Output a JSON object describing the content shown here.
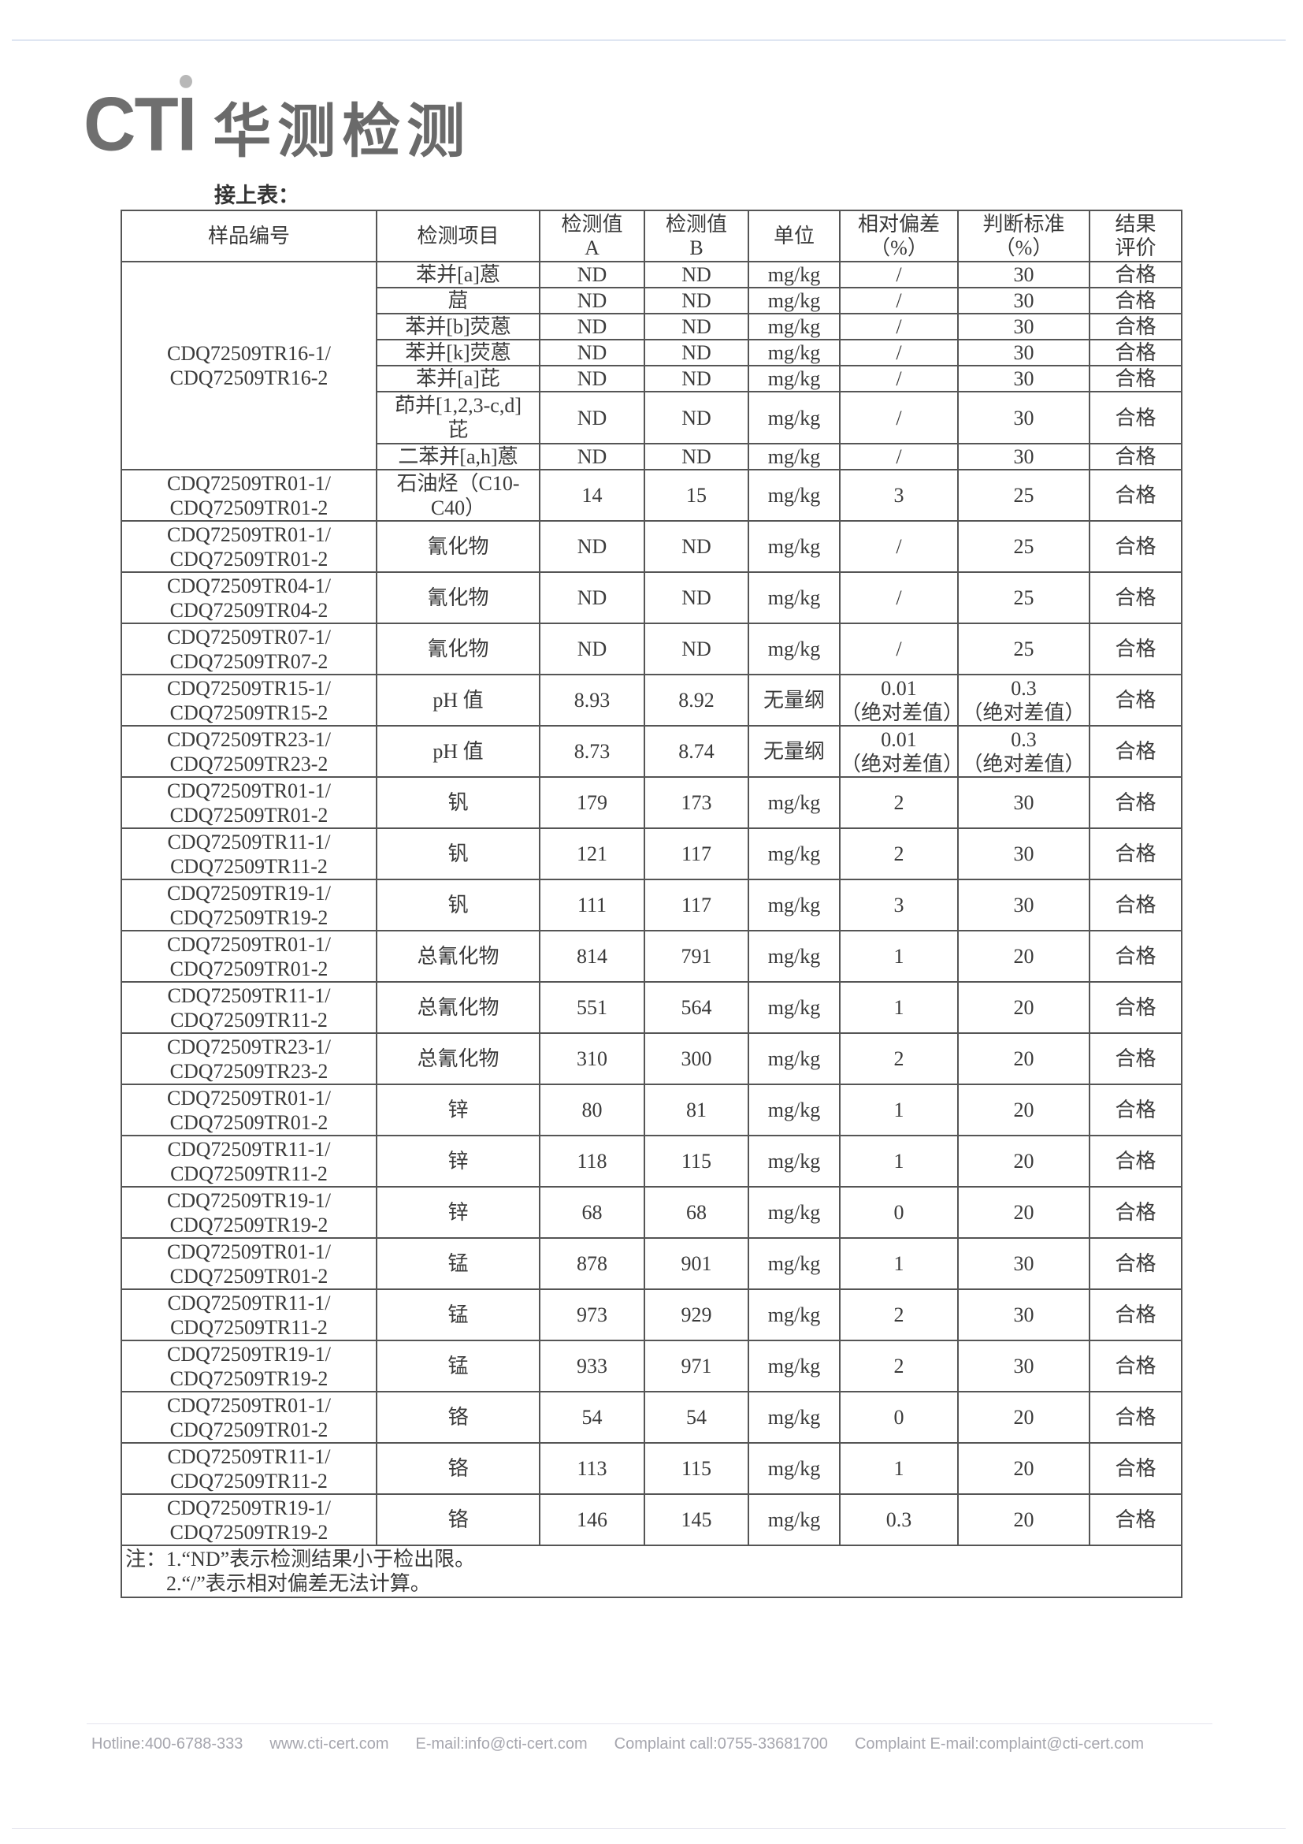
{
  "header": {
    "logo_text": "CTI",
    "logo_cn": "华测检测",
    "subtitle": "接上表："
  },
  "table": {
    "columns": [
      "样品编号",
      "检测项目",
      "检测值\nA",
      "检测值\nB",
      "单位",
      "相对偏差\n（%）",
      "判断标准\n（%）",
      "结果\n评价"
    ],
    "group": {
      "sample": [
        "CDQ72509TR16-1/",
        "CDQ72509TR16-2"
      ],
      "items": [
        {
          "item": "苯并[a]蒽",
          "a": "ND",
          "b": "ND",
          "unit": "mg/kg",
          "rel": "/",
          "crit": "30",
          "result": "合格"
        },
        {
          "item": "䓛",
          "a": "ND",
          "b": "ND",
          "unit": "mg/kg",
          "rel": "/",
          "crit": "30",
          "result": "合格"
        },
        {
          "item": "苯并[b]荧蒽",
          "a": "ND",
          "b": "ND",
          "unit": "mg/kg",
          "rel": "/",
          "crit": "30",
          "result": "合格"
        },
        {
          "item": "苯并[k]荧蒽",
          "a": "ND",
          "b": "ND",
          "unit": "mg/kg",
          "rel": "/",
          "crit": "30",
          "result": "合格"
        },
        {
          "item": "苯并[a]芘",
          "a": "ND",
          "b": "ND",
          "unit": "mg/kg",
          "rel": "/",
          "crit": "30",
          "result": "合格"
        },
        {
          "item": "茚并[1,2,3-c,d]\n芘",
          "a": "ND",
          "b": "ND",
          "unit": "mg/kg",
          "rel": "/",
          "crit": "30",
          "result": "合格"
        },
        {
          "item": "二苯并[a,h]蒽",
          "a": "ND",
          "b": "ND",
          "unit": "mg/kg",
          "rel": "/",
          "crit": "30",
          "result": "合格"
        }
      ]
    },
    "rows": [
      {
        "sample": [
          "CDQ72509TR01-1/",
          "CDQ72509TR01-2"
        ],
        "item": "石油烃（C10-C40）",
        "a": "14",
        "b": "15",
        "unit": "mg/kg",
        "rel": "3",
        "crit": "25",
        "result": "合格"
      },
      {
        "sample": [
          "CDQ72509TR01-1/",
          "CDQ72509TR01-2"
        ],
        "item": "氰化物",
        "a": "ND",
        "b": "ND",
        "unit": "mg/kg",
        "rel": "/",
        "crit": "25",
        "result": "合格"
      },
      {
        "sample": [
          "CDQ72509TR04-1/",
          "CDQ72509TR04-2"
        ],
        "item": "氰化物",
        "a": "ND",
        "b": "ND",
        "unit": "mg/kg",
        "rel": "/",
        "crit": "25",
        "result": "合格"
      },
      {
        "sample": [
          "CDQ72509TR07-1/",
          "CDQ72509TR07-2"
        ],
        "item": "氰化物",
        "a": "ND",
        "b": "ND",
        "unit": "mg/kg",
        "rel": "/",
        "crit": "25",
        "result": "合格"
      },
      {
        "sample": [
          "CDQ72509TR15-1/",
          "CDQ72509TR15-2"
        ],
        "item": "pH 值",
        "a": "8.93",
        "b": "8.92",
        "unit": "无量纲",
        "rel": "0.01\n（绝对差值）",
        "crit": "0.3\n（绝对差值）",
        "result": "合格"
      },
      {
        "sample": [
          "CDQ72509TR23-1/",
          "CDQ72509TR23-2"
        ],
        "item": "pH 值",
        "a": "8.73",
        "b": "8.74",
        "unit": "无量纲",
        "rel": "0.01\n（绝对差值）",
        "crit": "0.3\n（绝对差值）",
        "result": "合格"
      },
      {
        "sample": [
          "CDQ72509TR01-1/",
          "CDQ72509TR01-2"
        ],
        "item": "钒",
        "a": "179",
        "b": "173",
        "unit": "mg/kg",
        "rel": "2",
        "crit": "30",
        "result": "合格"
      },
      {
        "sample": [
          "CDQ72509TR11-1/",
          "CDQ72509TR11-2"
        ],
        "item": "钒",
        "a": "121",
        "b": "117",
        "unit": "mg/kg",
        "rel": "2",
        "crit": "30",
        "result": "合格"
      },
      {
        "sample": [
          "CDQ72509TR19-1/",
          "CDQ72509TR19-2"
        ],
        "item": "钒",
        "a": "111",
        "b": "117",
        "unit": "mg/kg",
        "rel": "3",
        "crit": "30",
        "result": "合格"
      },
      {
        "sample": [
          "CDQ72509TR01-1/",
          "CDQ72509TR01-2"
        ],
        "item": "总氰化物",
        "a": "814",
        "b": "791",
        "unit": "mg/kg",
        "rel": "1",
        "crit": "20",
        "result": "合格"
      },
      {
        "sample": [
          "CDQ72509TR11-1/",
          "CDQ72509TR11-2"
        ],
        "item": "总氰化物",
        "a": "551",
        "b": "564",
        "unit": "mg/kg",
        "rel": "1",
        "crit": "20",
        "result": "合格"
      },
      {
        "sample": [
          "CDQ72509TR23-1/",
          "CDQ72509TR23-2"
        ],
        "item": "总氰化物",
        "a": "310",
        "b": "300",
        "unit": "mg/kg",
        "rel": "2",
        "crit": "20",
        "result": "合格"
      },
      {
        "sample": [
          "CDQ72509TR01-1/",
          "CDQ72509TR01-2"
        ],
        "item": "锌",
        "a": "80",
        "b": "81",
        "unit": "mg/kg",
        "rel": "1",
        "crit": "20",
        "result": "合格"
      },
      {
        "sample": [
          "CDQ72509TR11-1/",
          "CDQ72509TR11-2"
        ],
        "item": "锌",
        "a": "118",
        "b": "115",
        "unit": "mg/kg",
        "rel": "1",
        "crit": "20",
        "result": "合格"
      },
      {
        "sample": [
          "CDQ72509TR19-1/",
          "CDQ72509TR19-2"
        ],
        "item": "锌",
        "a": "68",
        "b": "68",
        "unit": "mg/kg",
        "rel": "0",
        "crit": "20",
        "result": "合格"
      },
      {
        "sample": [
          "CDQ72509TR01-1/",
          "CDQ72509TR01-2"
        ],
        "item": "锰",
        "a": "878",
        "b": "901",
        "unit": "mg/kg",
        "rel": "1",
        "crit": "30",
        "result": "合格"
      },
      {
        "sample": [
          "CDQ72509TR11-1/",
          "CDQ72509TR11-2"
        ],
        "item": "锰",
        "a": "973",
        "b": "929",
        "unit": "mg/kg",
        "rel": "2",
        "crit": "30",
        "result": "合格"
      },
      {
        "sample": [
          "CDQ72509TR19-1/",
          "CDQ72509TR19-2"
        ],
        "item": "锰",
        "a": "933",
        "b": "971",
        "unit": "mg/kg",
        "rel": "2",
        "crit": "30",
        "result": "合格"
      },
      {
        "sample": [
          "CDQ72509TR01-1/",
          "CDQ72509TR01-2"
        ],
        "item": "铬",
        "a": "54",
        "b": "54",
        "unit": "mg/kg",
        "rel": "0",
        "crit": "20",
        "result": "合格"
      },
      {
        "sample": [
          "CDQ72509TR11-1/",
          "CDQ72509TR11-2"
        ],
        "item": "铬",
        "a": "113",
        "b": "115",
        "unit": "mg/kg",
        "rel": "1",
        "crit": "20",
        "result": "合格"
      },
      {
        "sample": [
          "CDQ72509TR19-1/",
          "CDQ72509TR19-2"
        ],
        "item": "铬",
        "a": "146",
        "b": "145",
        "unit": "mg/kg",
        "rel": "0.3",
        "crit": "20",
        "result": "合格"
      }
    ],
    "notes": [
      "注：1.“ND”表示检测结果小于检出限。",
      "　　2.“/”表示相对偏差无法计算。"
    ]
  },
  "footer": {
    "hotline": "Hotline:400-6788-333",
    "website": "www.cti-cert.com",
    "email": "E-mail:info@cti-cert.com",
    "complaint_call": "Complaint call:0755-33681700",
    "complaint_email": "Complaint E-mail:complaint@cti-cert.com"
  }
}
